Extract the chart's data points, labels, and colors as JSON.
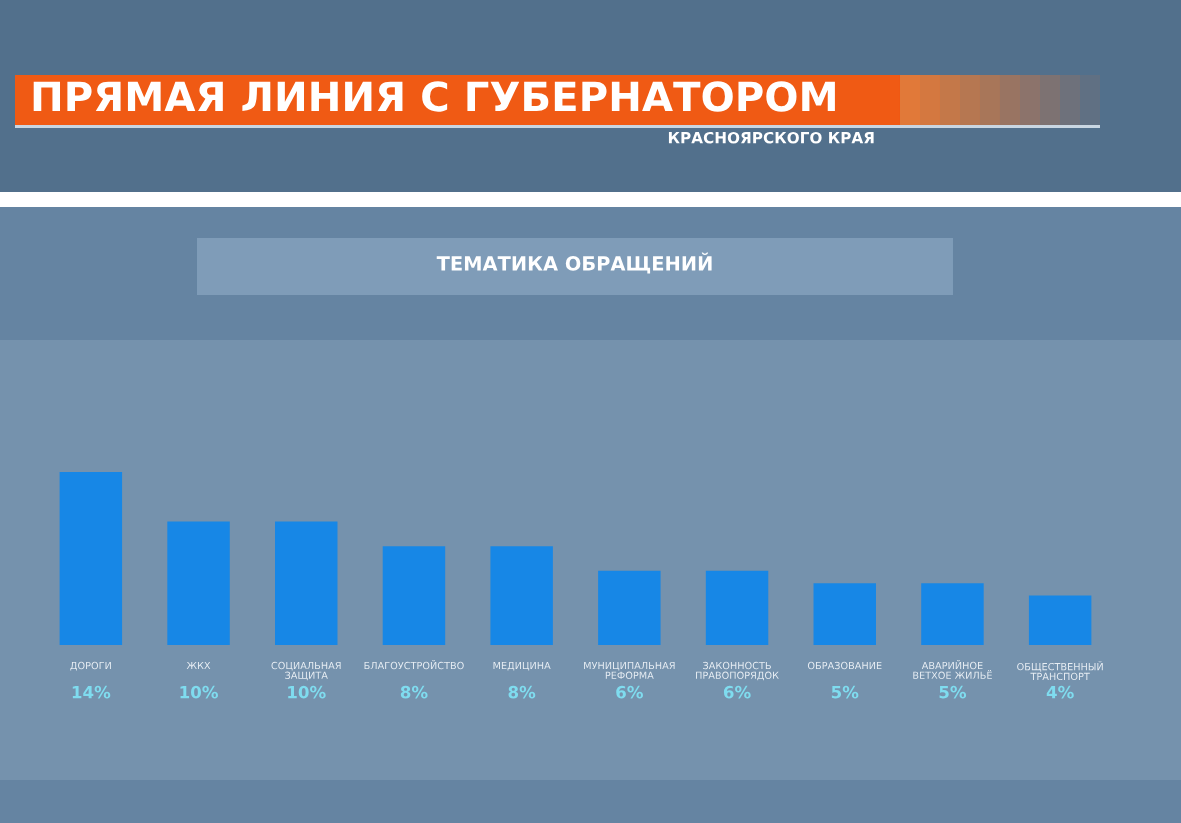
{
  "chart_data": {
    "type": "bar",
    "title": "ТЕМАТИКА ОБРАЩЕНИЙ",
    "annotations": [
      "ПРЯМАЯ ЛИНИЯ С ГУБЕРНАТОРОМ",
      "КРАСНОЯРСКОГО КРАЯ"
    ],
    "categories": [
      "ДОРОГИ",
      "ЖКХ",
      "СОЦИАЛЬНАЯ\nЗАЩИТА",
      "БЛАГОУСТРОЙСТВО",
      "МЕДИЦИНА",
      "МУНИЦИПАЛЬНАЯ\nРЕФОРМА",
      "ЗАКОННОСТЬ\nПРАВОПОРЯДОК",
      "ОБРАЗОВАНИЕ",
      "АВАРИЙНОЕ\nВЕТХОЕ ЖИЛЬЁ",
      "ОБЩЕСТВЕННЫЙ\nТРАНСПОРТ"
    ],
    "values": [
      14,
      10,
      10,
      8,
      8,
      6,
      6,
      5,
      5,
      4
    ],
    "value_labels": [
      "14%",
      "10%",
      "10%",
      "8%",
      "8%",
      "6%",
      "6%",
      "5%",
      "5%",
      "4%"
    ],
    "color": "#1787e6",
    "tick_labels": "x"
  }
}
